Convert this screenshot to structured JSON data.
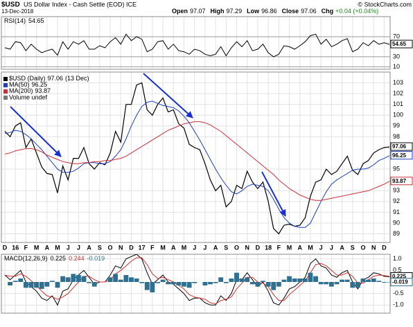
{
  "header": {
    "symbol": "$USD",
    "name": "US Dollar Index - Cash Settle (EOD) ICE",
    "date": "13-Dec-2018",
    "stats": [
      {
        "label": "Open",
        "value": 97.07
      },
      {
        "label": "High",
        "value": 97.29
      },
      {
        "label": "Low",
        "value": 96.86
      },
      {
        "label": "Close",
        "value": 97.06
      },
      {
        "label": "Chg",
        "value": "+0.04 (+0.04%)"
      }
    ],
    "source": "© StockCharts.com"
  },
  "chart_data": [
    {
      "type": "line",
      "title": "RSI(14)",
      "ylim": [
        5,
        110
      ],
      "yticks": [
        10,
        30,
        70
      ],
      "grid": true,
      "series": [
        {
          "name": "RSI(14)",
          "color": "#000000",
          "label_box": true,
          "values": [
            48,
            45,
            60,
            58,
            42,
            55,
            45,
            38,
            42,
            45,
            33,
            60,
            45,
            60,
            55,
            62,
            45,
            45,
            52,
            48,
            60,
            68,
            55,
            75,
            62,
            70,
            65,
            40,
            45,
            60,
            62,
            45,
            55,
            42,
            40,
            35,
            45,
            42,
            35,
            32,
            35,
            50,
            32,
            48,
            60,
            50,
            62,
            42,
            45,
            55,
            38,
            30,
            35,
            52,
            50,
            45,
            52,
            60,
            72,
            75,
            55,
            65,
            50,
            55,
            62,
            66,
            40,
            45,
            58,
            52,
            62,
            55,
            58,
            54.65
          ]
        }
      ]
    },
    {
      "type": "line",
      "ylim": [
        88.2,
        104
      ],
      "yticks": [
        89,
        90,
        91,
        92,
        93,
        95,
        98,
        99,
        100,
        101,
        102,
        103
      ],
      "grid": true,
      "legend_date": "(13 Dec)",
      "volume_label": "Volume undef",
      "categories": [
        "D",
        null,
        "16",
        null,
        "F",
        null,
        "M",
        null,
        "A",
        null,
        "M",
        null,
        "J",
        null,
        "J",
        null,
        "A",
        null,
        "S",
        null,
        "O",
        null,
        "N",
        null,
        "D",
        null,
        "17",
        null,
        "F",
        null,
        "M",
        null,
        "A",
        null,
        "M",
        null,
        "J",
        null,
        "J",
        null,
        "A",
        null,
        "S",
        null,
        "O",
        null,
        "N",
        null,
        "D",
        null,
        "18",
        null,
        "F",
        null,
        "M",
        null,
        "A",
        null,
        "M",
        null,
        "J",
        null,
        "J",
        null,
        "A",
        null,
        "S",
        null,
        "O",
        null,
        "N",
        null,
        "D",
        null
      ],
      "series": [
        {
          "name": "$USD (Daily)",
          "color": "#000000",
          "label_box": true,
          "values": [
            98.5,
            98.0,
            99.0,
            99.3,
            97.0,
            97.8,
            96.5,
            95.2,
            94.6,
            94.5,
            92.8,
            95.3,
            94.0,
            96.0,
            96.0,
            97.0,
            95.5,
            95.0,
            95.6,
            95.4,
            96.5,
            98.5,
            97.5,
            101.0,
            101.0,
            102.8,
            103.0,
            100.5,
            100.0,
            101.0,
            101.6,
            100.3,
            100.5,
            99.2,
            98.8,
            97.3,
            97.0,
            96.8,
            95.5,
            94.0,
            93.0,
            93.5,
            91.5,
            92.0,
            93.5,
            93.2,
            94.8,
            93.8,
            93.2,
            93.8,
            92.0,
            89.5,
            89.0,
            89.8,
            89.9,
            89.7,
            89.8,
            90.5,
            92.5,
            93.8,
            94.0,
            95.0,
            94.5,
            94.8,
            95.5,
            96.2,
            94.9,
            94.5,
            95.5,
            95.8,
            96.5,
            96.8,
            97.0,
            97.06
          ]
        },
        {
          "name": "MA(50)",
          "color": "#1f3fbf",
          "label_box": true,
          "values": [
            98.3,
            98.4,
            98.6,
            98.5,
            98.2,
            97.8,
            97.3,
            96.8,
            96.2,
            95.6,
            95.0,
            94.7,
            94.7,
            94.8,
            95.1,
            95.5,
            95.6,
            95.6,
            95.5,
            95.5,
            95.7,
            96.2,
            96.8,
            97.8,
            99.0,
            100.0,
            100.8,
            101.2,
            101.3,
            101.1,
            100.9,
            100.8,
            100.7,
            100.4,
            99.9,
            99.3,
            98.5,
            97.7,
            96.8,
            95.9,
            95.0,
            94.2,
            93.5,
            92.9,
            92.7,
            93.0,
            93.4,
            93.6,
            93.5,
            93.4,
            93.0,
            92.2,
            91.3,
            90.5,
            90.0,
            89.7,
            89.6,
            89.6,
            90.0,
            91.0,
            92.0,
            92.9,
            93.6,
            94.0,
            94.3,
            94.6,
            94.9,
            95.0,
            95.0,
            95.1,
            95.4,
            95.8,
            96.0,
            96.25
          ]
        },
        {
          "name": "MA(200)",
          "color": "#c8303a",
          "label_box": true,
          "values": [
            96.4,
            96.5,
            96.7,
            96.8,
            96.9,
            96.9,
            96.8,
            96.6,
            96.3,
            96.1,
            95.9,
            95.7,
            95.6,
            95.5,
            95.5,
            95.6,
            95.6,
            95.7,
            95.7,
            95.8,
            95.8,
            95.9,
            96.0,
            96.2,
            96.5,
            96.8,
            97.1,
            97.4,
            97.7,
            98.0,
            98.3,
            98.6,
            98.8,
            99.0,
            99.2,
            99.3,
            99.4,
            99.4,
            99.3,
            99.1,
            98.8,
            98.5,
            98.1,
            97.7,
            97.3,
            96.9,
            96.5,
            96.1,
            95.7,
            95.3,
            94.9,
            94.5,
            94.0,
            93.6,
            93.2,
            92.9,
            92.6,
            92.4,
            92.2,
            92.1,
            92.1,
            92.2,
            92.3,
            92.4,
            92.5,
            92.6,
            92.7,
            92.8,
            92.9,
            93.0,
            93.2,
            93.4,
            93.6,
            93.87
          ]
        }
      ]
    },
    {
      "type": "line",
      "title": "MACD(12,26,9)",
      "ylim": [
        -1.35,
        1.2
      ],
      "yticks": [
        {
          "value": 1,
          "label": "1.0"
        },
        0.5,
        -0.5,
        {
          "value": -1,
          "label": "-1.0"
        }
      ],
      "grid": true,
      "series": [
        {
          "type": "line",
          "color": "#000000",
          "label_box": true,
          "values": [
            0.3,
            0.1,
            0.3,
            0.5,
            0.0,
            -0.2,
            -0.4,
            -0.7,
            -0.8,
            -0.6,
            -1.0,
            -0.4,
            -0.3,
            0.1,
            0.3,
            0.5,
            0.2,
            -0.1,
            0.0,
            0.0,
            0.3,
            0.7,
            0.6,
            1.0,
            1.1,
            1.2,
            1.0,
            0.4,
            -0.1,
            0.1,
            0.3,
            0.0,
            -0.1,
            -0.3,
            -0.5,
            -0.8,
            -0.7,
            -0.7,
            -0.9,
            -1.0,
            -1.0,
            -0.6,
            -0.8,
            -0.5,
            0.1,
            0.1,
            0.4,
            0.1,
            -0.2,
            0.0,
            -0.4,
            -0.9,
            -1.0,
            -0.7,
            -0.3,
            -0.2,
            0.0,
            0.2,
            0.8,
            1.0,
            0.7,
            0.6,
            0.3,
            0.2,
            0.4,
            0.5,
            0.0,
            -0.3,
            0.1,
            0.2,
            0.4,
            0.35,
            0.25,
            0.225
          ]
        },
        {
          "type": "line",
          "color": "#d03030",
          "label_box": false,
          "values": [
            0.3,
            0.25,
            0.25,
            0.35,
            0.25,
            0.05,
            -0.15,
            -0.4,
            -0.6,
            -0.65,
            -0.75,
            -0.65,
            -0.5,
            -0.25,
            0.0,
            0.25,
            0.25,
            0.1,
            0.0,
            0.0,
            0.1,
            0.35,
            0.5,
            0.7,
            0.9,
            1.05,
            1.05,
            0.75,
            0.35,
            0.15,
            0.2,
            0.1,
            0.0,
            -0.15,
            -0.3,
            -0.55,
            -0.65,
            -0.7,
            -0.75,
            -0.9,
            -0.95,
            -0.8,
            -0.75,
            -0.65,
            -0.3,
            -0.05,
            0.2,
            0.2,
            0.0,
            -0.05,
            -0.2,
            -0.55,
            -0.8,
            -0.8,
            -0.55,
            -0.35,
            -0.15,
            0.05,
            0.4,
            0.75,
            0.8,
            0.7,
            0.5,
            0.3,
            0.3,
            0.4,
            0.25,
            -0.05,
            -0.05,
            0.1,
            0.25,
            0.3,
            0.28,
            0.244
          ]
        },
        {
          "type": "bar",
          "color": "#2f6f8f",
          "label_box": true,
          "values": [
            0.0,
            -0.15,
            0.05,
            0.15,
            -0.25,
            -0.25,
            -0.25,
            -0.3,
            -0.2,
            0.05,
            -0.25,
            0.25,
            0.2,
            0.35,
            0.3,
            0.25,
            -0.05,
            -0.2,
            0,
            0,
            0.2,
            0.35,
            0.1,
            0.3,
            0.2,
            0.15,
            -0.05,
            -0.35,
            -0.45,
            -0.05,
            0.1,
            -0.1,
            -0.1,
            -0.15,
            -0.2,
            -0.25,
            -0.05,
            0,
            -0.15,
            -0.1,
            -0.05,
            0.2,
            -0.05,
            0.15,
            0.4,
            0.15,
            0.2,
            -0.1,
            -0.2,
            0.05,
            -0.2,
            -0.35,
            -0.2,
            0.1,
            0.25,
            0.15,
            0.15,
            0.15,
            0.4,
            0.25,
            -0.1,
            -0.1,
            -0.2,
            -0.1,
            0.1,
            0.1,
            -0.25,
            -0.25,
            0.15,
            0.1,
            0.15,
            0.05,
            -0.03,
            -0.019
          ]
        }
      ]
    }
  ]
}
